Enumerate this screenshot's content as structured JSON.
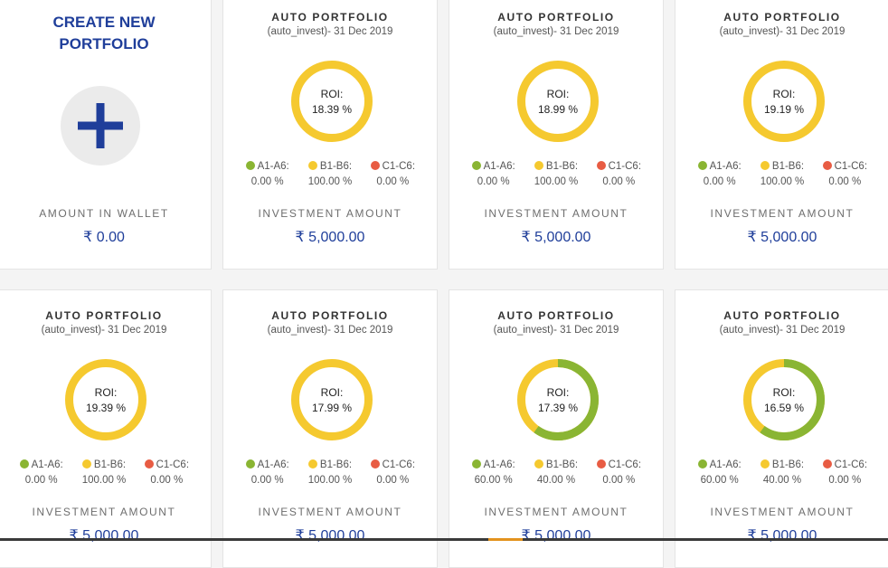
{
  "colors": {
    "brand_blue": "#1f3e9a",
    "a_grade": "#8ab533",
    "b_grade": "#f5c92f",
    "c_grade": "#e85c43",
    "ring_track": "#f5c92f"
  },
  "create_card": {
    "title_line1": "CREATE NEW",
    "title_line2": "PORTFOLIO",
    "icon": "plus-icon",
    "wallet_label": "AMOUNT IN WALLET",
    "wallet_value": "₹ 0.00"
  },
  "portfolios": [
    {
      "title": "AUTO PORTFOLIO",
      "subtitle": "(auto_invest)- 31 Dec 2019",
      "roi_label": "ROI:",
      "roi_value": "18.39 %",
      "a_pct": 0,
      "b_pct": 100,
      "c_pct": 0,
      "a_label": "A1-A6:",
      "b_label": "B1-B6:",
      "c_label": "C1-C6:",
      "a_value": "0.00 %",
      "b_value": "100.00 %",
      "c_value": "0.00 %",
      "invest_label": "INVESTMENT AMOUNT",
      "invest_value": "₹ 5,000.00"
    },
    {
      "title": "AUTO PORTFOLIO",
      "subtitle": "(auto_invest)- 31 Dec 2019",
      "roi_label": "ROI:",
      "roi_value": "18.99 %",
      "a_pct": 0,
      "b_pct": 100,
      "c_pct": 0,
      "a_label": "A1-A6:",
      "b_label": "B1-B6:",
      "c_label": "C1-C6:",
      "a_value": "0.00 %",
      "b_value": "100.00 %",
      "c_value": "0.00 %",
      "invest_label": "INVESTMENT AMOUNT",
      "invest_value": "₹ 5,000.00"
    },
    {
      "title": "AUTO PORTFOLIO",
      "subtitle": "(auto_invest)- 31 Dec 2019",
      "roi_label": "ROI:",
      "roi_value": "19.19 %",
      "a_pct": 0,
      "b_pct": 100,
      "c_pct": 0,
      "a_label": "A1-A6:",
      "b_label": "B1-B6:",
      "c_label": "C1-C6:",
      "a_value": "0.00 %",
      "b_value": "100.00 %",
      "c_value": "0.00 %",
      "invest_label": "INVESTMENT AMOUNT",
      "invest_value": "₹ 5,000.00"
    },
    {
      "title": "AUTO PORTFOLIO",
      "subtitle": "(auto_invest)- 31 Dec 2019",
      "roi_label": "ROI:",
      "roi_value": "19.39 %",
      "a_pct": 0,
      "b_pct": 100,
      "c_pct": 0,
      "a_label": "A1-A6:",
      "b_label": "B1-B6:",
      "c_label": "C1-C6:",
      "a_value": "0.00 %",
      "b_value": "100.00 %",
      "c_value": "0.00 %",
      "invest_label": "INVESTMENT AMOUNT",
      "invest_value": "₹ 5,000.00"
    },
    {
      "title": "AUTO PORTFOLIO",
      "subtitle": "(auto_invest)- 31 Dec 2019",
      "roi_label": "ROI:",
      "roi_value": "17.99 %",
      "a_pct": 0,
      "b_pct": 100,
      "c_pct": 0,
      "a_label": "A1-A6:",
      "b_label": "B1-B6:",
      "c_label": "C1-C6:",
      "a_value": "0.00 %",
      "b_value": "100.00 %",
      "c_value": "0.00 %",
      "invest_label": "INVESTMENT AMOUNT",
      "invest_value": "₹ 5,000.00"
    },
    {
      "title": "AUTO PORTFOLIO",
      "subtitle": "(auto_invest)- 31 Dec 2019",
      "roi_label": "ROI:",
      "roi_value": "17.39 %",
      "a_pct": 60,
      "b_pct": 40,
      "c_pct": 0,
      "a_label": "A1-A6:",
      "b_label": "B1-B6:",
      "c_label": "C1-C6:",
      "a_value": "60.00 %",
      "b_value": "40.00 %",
      "c_value": "0.00 %",
      "invest_label": "INVESTMENT AMOUNT",
      "invest_value": "₹ 5,000.00"
    },
    {
      "title": "AUTO PORTFOLIO",
      "subtitle": "(auto_invest)- 31 Dec 2019",
      "roi_label": "ROI:",
      "roi_value": "16.59 %",
      "a_pct": 60,
      "b_pct": 40,
      "c_pct": 0,
      "a_label": "A1-A6:",
      "b_label": "B1-B6:",
      "c_label": "C1-C6:",
      "a_value": "60.00 %",
      "b_value": "40.00 %",
      "c_value": "0.00 %",
      "invest_label": "INVESTMENT AMOUNT",
      "invest_value": "₹ 5,000.00"
    }
  ]
}
